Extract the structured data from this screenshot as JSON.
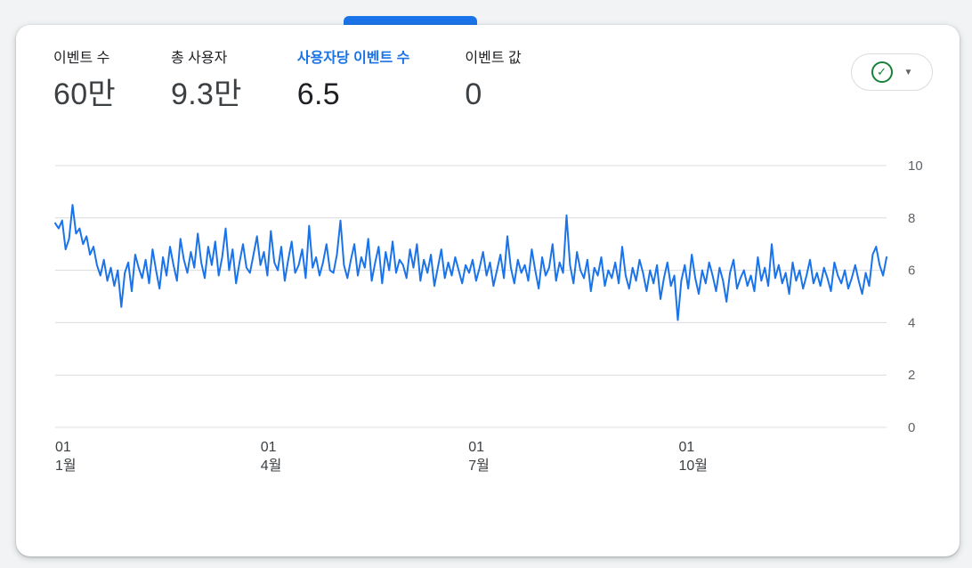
{
  "theme": {
    "accent_blue": "#1a73e8",
    "check_green": "#188038",
    "grid_color": "#dadce0",
    "ytick_color": "#5f6368",
    "xtick_color": "#3c4043"
  },
  "metrics": [
    {
      "label": "이벤트 수",
      "value": "60만",
      "selected": false
    },
    {
      "label": "총 사용자",
      "value": "9.3만",
      "selected": false
    },
    {
      "label": "사용자당 이벤트 수",
      "value": "6.5",
      "selected": true
    },
    {
      "label": "이벤트 값",
      "value": "0",
      "selected": false
    }
  ],
  "selector": {
    "check_icon": "✓",
    "caret_icon": "▼"
  },
  "chart_data": {
    "type": "line",
    "title": "",
    "xlabel": "",
    "ylabel": "",
    "legend": "none",
    "grid": true,
    "ylim": [
      0,
      10
    ],
    "yticks": [
      0,
      2,
      4,
      6,
      8,
      10
    ],
    "xticks": [
      {
        "pos": 0.0,
        "line1": "01",
        "line2": "1월"
      },
      {
        "pos": 0.247,
        "line1": "01",
        "line2": "4월"
      },
      {
        "pos": 0.497,
        "line1": "01",
        "line2": "7월"
      },
      {
        "pos": 0.75,
        "line1": "01",
        "line2": "10월"
      }
    ],
    "line_color": "#1a73e8",
    "series": [
      {
        "name": "사용자당 이벤트 수",
        "values": [
          7.8,
          7.6,
          7.9,
          6.8,
          7.2,
          8.5,
          7.4,
          7.6,
          7.0,
          7.3,
          6.6,
          6.9,
          6.2,
          5.8,
          6.4,
          5.6,
          6.1,
          5.4,
          6.0,
          4.6,
          5.9,
          6.3,
          5.2,
          6.6,
          6.1,
          5.7,
          6.4,
          5.5,
          6.8,
          6.0,
          5.3,
          6.5,
          5.8,
          6.9,
          6.2,
          5.6,
          7.2,
          6.4,
          5.9,
          6.7,
          6.1,
          7.4,
          6.3,
          5.7,
          6.9,
          6.2,
          7.1,
          5.8,
          6.5,
          7.6,
          6.0,
          6.8,
          5.5,
          6.3,
          7.0,
          6.1,
          5.9,
          6.6,
          7.3,
          6.2,
          6.7,
          5.8,
          7.5,
          6.3,
          6.0,
          6.9,
          5.6,
          6.4,
          7.1,
          5.9,
          6.2,
          6.8,
          5.7,
          7.7,
          6.1,
          6.5,
          5.8,
          6.3,
          7.0,
          6.0,
          5.9,
          6.6,
          7.9,
          6.2,
          5.7,
          6.4,
          7.0,
          5.8,
          6.5,
          6.1,
          7.2,
          5.6,
          6.3,
          6.9,
          5.5,
          6.7,
          6.0,
          7.1,
          5.9,
          6.4,
          6.2,
          5.7,
          6.8,
          6.1,
          7.0,
          5.6,
          6.4,
          5.9,
          6.6,
          5.4,
          6.1,
          6.8,
          5.7,
          6.3,
          5.8,
          6.5,
          6.0,
          5.5,
          6.2,
          5.9,
          6.4,
          5.6,
          6.1,
          6.7,
          5.8,
          6.3,
          5.4,
          6.0,
          6.6,
          5.7,
          7.3,
          6.1,
          5.5,
          6.4,
          5.9,
          6.2,
          5.6,
          6.8,
          6.0,
          5.3,
          6.5,
          5.8,
          6.1,
          7.0,
          5.6,
          6.3,
          5.9,
          8.1,
          6.2,
          5.5,
          6.7,
          6.0,
          5.7,
          6.4,
          5.2,
          6.1,
          5.8,
          6.5,
          5.4,
          6.0,
          5.7,
          6.3,
          5.5,
          6.9,
          5.8,
          5.3,
          6.1,
          5.6,
          6.4,
          5.9,
          5.2,
          6.0,
          5.5,
          6.2,
          4.9,
          5.7,
          6.3,
          5.4,
          5.8,
          4.1,
          5.6,
          6.2,
          5.3,
          6.6,
          5.7,
          5.1,
          6.0,
          5.5,
          6.3,
          5.8,
          5.2,
          6.1,
          5.6,
          4.8,
          5.9,
          6.4,
          5.3,
          5.7,
          6.0,
          5.4,
          5.8,
          5.2,
          6.5,
          5.6,
          6.1,
          5.4,
          7.0,
          5.7,
          6.2,
          5.5,
          5.9,
          5.1,
          6.3,
          5.6,
          6.0,
          5.3,
          5.8,
          6.4,
          5.5,
          5.9,
          5.4,
          6.1,
          5.7,
          5.2,
          6.3,
          5.8,
          5.5,
          6.0,
          5.3,
          5.7,
          6.2,
          5.6,
          5.1,
          5.9,
          5.4,
          6.6,
          6.9,
          6.2,
          5.8,
          6.5
        ]
      }
    ]
  }
}
